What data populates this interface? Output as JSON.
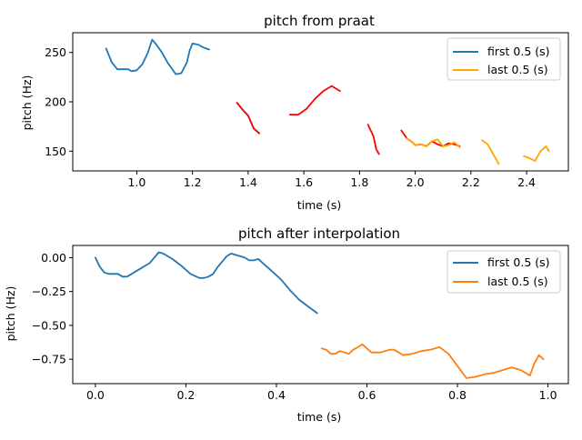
{
  "chart_data": [
    {
      "type": "line",
      "title": "pitch from praat",
      "xlabel": "time (s)",
      "ylabel": "pitch (Hz)",
      "xlim": [
        0.77,
        2.55
      ],
      "ylim": [
        130,
        270
      ],
      "xticks": [
        "1.0",
        "1.2",
        "1.4",
        "1.6",
        "1.8",
        "2.0",
        "2.2",
        "2.4"
      ],
      "xtick_values": [
        1.0,
        1.2,
        1.4,
        1.6,
        1.8,
        2.0,
        2.2,
        2.4
      ],
      "yticks": [
        "150",
        "200",
        "250"
      ],
      "ytick_values": [
        150,
        200,
        250
      ],
      "grid": false,
      "legend": {
        "position": "top-right",
        "entries": [
          "first 0.5 (s)",
          "last 0.5 (s)"
        ]
      },
      "series": [
        {
          "name": "first 0.5 (s)",
          "color": "#1f77b4",
          "segments": [
            [
              [
                0.89,
                254
              ],
              [
                0.91,
                240
              ],
              [
                0.93,
                233
              ],
              [
                0.95,
                233
              ],
              [
                0.97,
                233
              ],
              [
                0.98,
                231
              ],
              [
                1.0,
                232
              ],
              [
                1.02,
                238
              ],
              [
                1.03,
                244
              ],
              [
                1.04,
                250
              ],
              [
                1.055,
                263
              ],
              [
                1.07,
                258
              ],
              [
                1.09,
                250
              ],
              [
                1.11,
                240
              ],
              [
                1.14,
                228
              ],
              [
                1.16,
                229
              ],
              [
                1.18,
                240
              ],
              [
                1.19,
                252
              ],
              [
                1.2,
                259
              ],
              [
                1.22,
                258
              ],
              [
                1.24,
                255
              ],
              [
                1.26,
                253
              ]
            ],
            [
              [
                1.36,
                199
              ],
              [
                1.38,
                192
              ],
              [
                1.4,
                186
              ],
              [
                1.42,
                173
              ],
              [
                1.44,
                168
              ]
            ]
          ]
        },
        {
          "name": "",
          "color": "#ff0000",
          "segments": [
            [
              [
                1.36,
                199
              ],
              [
                1.38,
                192
              ],
              [
                1.4,
                186
              ],
              [
                1.42,
                173
              ],
              [
                1.44,
                168
              ]
            ],
            [
              [
                1.55,
                187
              ],
              [
                1.58,
                187
              ],
              [
                1.61,
                193
              ],
              [
                1.64,
                203
              ],
              [
                1.67,
                211
              ],
              [
                1.7,
                216
              ],
              [
                1.73,
                211
              ]
            ],
            [
              [
                1.83,
                177
              ],
              [
                1.85,
                165
              ],
              [
                1.86,
                152
              ],
              [
                1.87,
                147
              ]
            ],
            [
              [
                1.95,
                171
              ],
              [
                1.97,
                163
              ],
              [
                1.99,
                159
              ],
              [
                2.0,
                156
              ],
              [
                2.02,
                157
              ],
              [
                2.04,
                155
              ],
              [
                2.06,
                160
              ],
              [
                2.08,
                157
              ],
              [
                2.1,
                155
              ],
              [
                2.12,
                158
              ],
              [
                2.14,
                157
              ],
              [
                2.16,
                155
              ]
            ]
          ]
        },
        {
          "name": "last 0.5 (s)",
          "color": "#ffa500",
          "segments": [
            [
              [
                1.97,
                163
              ],
              [
                1.99,
                159
              ],
              [
                2.0,
                156
              ],
              [
                2.02,
                157
              ],
              [
                2.04,
                155
              ],
              [
                2.06,
                160
              ],
              [
                2.08,
                162
              ],
              [
                2.1,
                155
              ],
              [
                2.12,
                156
              ],
              [
                2.14,
                159
              ],
              [
                2.16,
                154
              ]
            ],
            [
              [
                2.24,
                161
              ],
              [
                2.26,
                157
              ],
              [
                2.28,
                147
              ],
              [
                2.3,
                137
              ]
            ],
            [
              [
                2.39,
                145
              ],
              [
                2.41,
                143
              ],
              [
                2.43,
                140
              ],
              [
                2.45,
                150
              ],
              [
                2.47,
                155
              ],
              [
                2.48,
                150
              ]
            ]
          ]
        }
      ]
    },
    {
      "type": "line",
      "title": "pitch after interpolation",
      "xlabel": "time (s)",
      "ylabel": "pitch (Hz)",
      "xlim": [
        -0.05,
        1.045
      ],
      "ylim": [
        -0.93,
        0.09
      ],
      "xticks": [
        "0.0",
        "0.2",
        "0.4",
        "0.6",
        "0.8",
        "1.0"
      ],
      "xtick_values": [
        0.0,
        0.2,
        0.4,
        0.6,
        0.8,
        1.0
      ],
      "yticks": [
        "0.00",
        "−0.25",
        "−0.50",
        "−0.75"
      ],
      "ytick_values": [
        0.0,
        -0.25,
        -0.5,
        -0.75
      ],
      "grid": false,
      "legend": {
        "position": "top-right",
        "entries": [
          "first 0.5 (s)",
          "last 0.5 (s)"
        ]
      },
      "series": [
        {
          "name": "first 0.5 (s)",
          "color": "#1f77b4",
          "segments": [
            [
              [
                0.0,
                0.0
              ],
              [
                0.01,
                -0.07
              ],
              [
                0.02,
                -0.11
              ],
              [
                0.03,
                -0.12
              ],
              [
                0.04,
                -0.12
              ],
              [
                0.05,
                -0.12
              ],
              [
                0.06,
                -0.14
              ],
              [
                0.07,
                -0.14
              ],
              [
                0.08,
                -0.12
              ],
              [
                0.1,
                -0.08
              ],
              [
                0.12,
                -0.04
              ],
              [
                0.14,
                0.04
              ],
              [
                0.15,
                0.03
              ],
              [
                0.17,
                -0.01
              ],
              [
                0.19,
                -0.06
              ],
              [
                0.2,
                -0.09
              ],
              [
                0.21,
                -0.12
              ],
              [
                0.23,
                -0.15
              ],
              [
                0.24,
                -0.15
              ],
              [
                0.25,
                -0.14
              ],
              [
                0.26,
                -0.12
              ],
              [
                0.27,
                -0.07
              ],
              [
                0.28,
                -0.03
              ],
              [
                0.29,
                0.01
              ],
              [
                0.3,
                0.03
              ],
              [
                0.31,
                0.02
              ],
              [
                0.32,
                0.01
              ],
              [
                0.33,
                0.0
              ],
              [
                0.34,
                -0.02
              ],
              [
                0.35,
                -0.02
              ],
              [
                0.36,
                -0.01
              ],
              [
                0.37,
                -0.04
              ],
              [
                0.39,
                -0.1
              ],
              [
                0.41,
                -0.16
              ],
              [
                0.43,
                -0.24
              ],
              [
                0.45,
                -0.31
              ],
              [
                0.47,
                -0.36
              ],
              [
                0.49,
                -0.41
              ]
            ]
          ]
        },
        {
          "name": "last 0.5 (s)",
          "color": "#ff7f0e",
          "segments": [
            [
              [
                0.5,
                -0.67
              ],
              [
                0.51,
                -0.68
              ],
              [
                0.52,
                -0.71
              ],
              [
                0.53,
                -0.71
              ],
              [
                0.54,
                -0.69
              ],
              [
                0.56,
                -0.71
              ],
              [
                0.57,
                -0.68
              ],
              [
                0.58,
                -0.66
              ],
              [
                0.59,
                -0.64
              ],
              [
                0.6,
                -0.67
              ],
              [
                0.61,
                -0.7
              ],
              [
                0.63,
                -0.7
              ],
              [
                0.65,
                -0.68
              ],
              [
                0.66,
                -0.68
              ],
              [
                0.67,
                -0.7
              ],
              [
                0.68,
                -0.72
              ],
              [
                0.7,
                -0.71
              ],
              [
                0.72,
                -0.69
              ],
              [
                0.74,
                -0.68
              ],
              [
                0.76,
                -0.66
              ],
              [
                0.78,
                -0.71
              ],
              [
                0.8,
                -0.8
              ],
              [
                0.82,
                -0.89
              ],
              [
                0.84,
                -0.88
              ],
              [
                0.86,
                -0.86
              ],
              [
                0.88,
                -0.85
              ],
              [
                0.9,
                -0.83
              ],
              [
                0.92,
                -0.81
              ],
              [
                0.94,
                -0.83
              ],
              [
                0.96,
                -0.87
              ],
              [
                0.97,
                -0.78
              ],
              [
                0.98,
                -0.72
              ],
              [
                0.99,
                -0.75
              ]
            ]
          ]
        }
      ]
    }
  ]
}
